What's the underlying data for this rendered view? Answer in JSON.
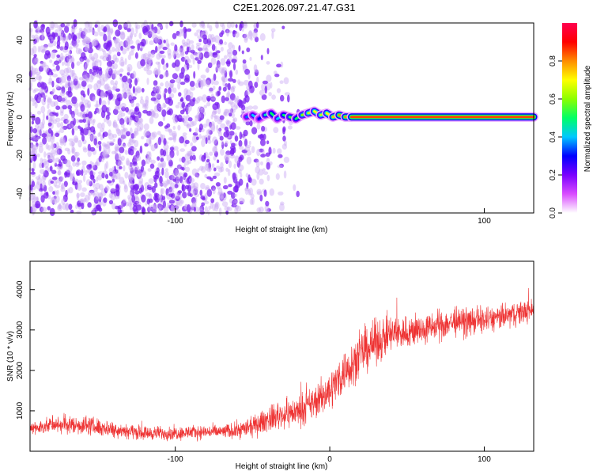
{
  "title": "C2E1.2026.097.21.47.G31",
  "colors": {
    "axis": "#000000",
    "snr_line": "#ee3333",
    "spec_dots": "#7a2ce0",
    "colormap": [
      "#ffffff",
      "#d94cff",
      "#7a00ff",
      "#0000ff",
      "#00c8ff",
      "#00ff66",
      "#8cff00",
      "#ffff00",
      "#ff8c00",
      "#ff0000",
      "#ff0050"
    ]
  },
  "chart_data": [
    {
      "type": "heatmap",
      "title": "C2E1.2026.097.21.47.G31",
      "xlabel": "Height of straight line (km)",
      "ylabel": "Frequency (Hz)",
      "xlim": [
        -194,
        132
      ],
      "ylim": [
        -50,
        49
      ],
      "x_ticks": [
        -100,
        100
      ],
      "x_tick_labels": [
        "-100",
        "100"
      ],
      "y_ticks": [
        -40,
        -20,
        0,
        20,
        40
      ],
      "y_tick_labels": [
        "-40",
        "-20",
        "0",
        "20",
        "40"
      ],
      "grid": false,
      "colorbar": {
        "label": "Normalized spectral amplitude",
        "range": [
          0,
          1
        ],
        "ticks": [
          0.0,
          0.2,
          0.4,
          0.6,
          0.8
        ],
        "tick_labels": [
          "0.0",
          "0.2",
          "0.4",
          "0.6",
          "0.8"
        ]
      },
      "tone_track": {
        "x": [
          -54,
          -50,
          -46,
          -42,
          -38,
          -34,
          -30,
          -26,
          -22,
          -18,
          -14,
          -10,
          -6,
          -2,
          2,
          6,
          10,
          14,
          132
        ],
        "frequency_hz": [
          0,
          1,
          -1,
          1,
          2,
          -1,
          1,
          0,
          -1,
          1,
          2,
          3,
          1,
          2,
          0,
          1,
          0,
          0,
          0
        ],
        "amplitude": [
          0.35,
          0.4,
          0.3,
          0.45,
          0.5,
          0.4,
          0.5,
          0.55,
          0.5,
          0.6,
          0.65,
          0.7,
          0.65,
          0.7,
          0.75,
          0.8,
          0.8,
          0.85,
          0.9
        ]
      },
      "noise_extent_km": [
        -194,
        -20
      ],
      "noise_amplitude": 0.15
    },
    {
      "type": "line",
      "xlabel": "Height of straight line (km)",
      "ylabel": "SNR (10 * v/v)",
      "xlim": [
        -194,
        132
      ],
      "ylim": [
        0,
        4700
      ],
      "x_ticks": [
        -100,
        0,
        100
      ],
      "x_tick_labels": [
        "-100",
        "0",
        "100"
      ],
      "y_ticks": [
        1000,
        2000,
        3000,
        4000
      ],
      "y_tick_labels": [
        "1000",
        "2000",
        "3000",
        "4000"
      ],
      "grid": false,
      "series": [
        {
          "envelope_x": [
            -194,
            -180,
            -160,
            -140,
            -120,
            -100,
            -80,
            -70,
            -60,
            -50,
            -40,
            -30,
            -20,
            -10,
            0,
            10,
            20,
            30,
            40,
            50,
            60,
            70,
            80,
            90,
            100,
            110,
            120,
            132
          ],
          "envelope_mean": [
            550,
            650,
            650,
            550,
            450,
            450,
            480,
            480,
            520,
            600,
            800,
            900,
            1000,
            1200,
            1500,
            2000,
            2400,
            2700,
            2900,
            2950,
            3000,
            3100,
            3200,
            3200,
            3250,
            3300,
            3400,
            3500
          ],
          "envelope_spread": [
            250,
            300,
            350,
            300,
            250,
            250,
            250,
            250,
            300,
            350,
            450,
            500,
            550,
            600,
            700,
            800,
            800,
            800,
            700,
            600,
            550,
            550,
            550,
            500,
            500,
            450,
            450,
            400
          ]
        }
      ]
    }
  ]
}
